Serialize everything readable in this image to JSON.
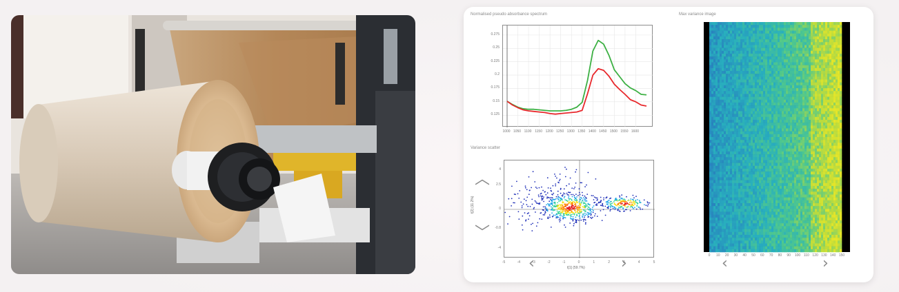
{
  "photo": {
    "subject": "paper-roll-slitter-machine"
  },
  "dashboard": {
    "spectrum_panel": {
      "title": "Normalised pseudo absorbance spectrum"
    },
    "scatter_panel": {
      "title": "Variance scatter",
      "xlabel": "t[1] (59.7%)",
      "ylabel": "t[2] (11.2%)"
    },
    "image_panel": {
      "title": "Max variance image"
    },
    "nav": {
      "prev_icon": "chevron-left-icon",
      "next_icon": "chevron-right-icon",
      "up_icon": "chevron-up-icon",
      "down_icon": "chevron-down-icon"
    }
  },
  "chart_data": [
    {
      "type": "line",
      "title": "Normalised pseudo absorbance spectrum",
      "x": [
        1000,
        1025,
        1050,
        1075,
        1100,
        1125,
        1150,
        1175,
        1200,
        1225,
        1250,
        1275,
        1300,
        1325,
        1350,
        1375,
        1400,
        1425,
        1450,
        1475,
        1500,
        1525,
        1550,
        1575,
        1600,
        1625,
        1650
      ],
      "xticks": [
        "1000",
        "1050",
        "1100",
        "1150",
        "1200",
        "1250",
        "1300",
        "1350",
        "1400",
        "1450",
        "1500",
        "1550",
        "1600"
      ],
      "yticks": [
        "0.125",
        "0.15",
        "0.175",
        "0.2",
        "0.225",
        "0.25",
        "0.275"
      ],
      "ylim": [
        0.115,
        0.28
      ],
      "series": [
        {
          "color": "#3cb043",
          "values": [
            0.151,
            0.145,
            0.14,
            0.137,
            0.136,
            0.136,
            0.135,
            0.134,
            0.133,
            0.133,
            0.133,
            0.134,
            0.136,
            0.14,
            0.149,
            0.19,
            0.245,
            0.265,
            0.258,
            0.237,
            0.21,
            0.197,
            0.184,
            0.176,
            0.171,
            0.164,
            0.163
          ]
        },
        {
          "color": "#e8272b",
          "values": [
            0.151,
            0.144,
            0.139,
            0.135,
            0.133,
            0.132,
            0.131,
            0.13,
            0.128,
            0.127,
            0.128,
            0.129,
            0.13,
            0.131,
            0.134,
            0.165,
            0.2,
            0.212,
            0.209,
            0.198,
            0.183,
            0.173,
            0.164,
            0.154,
            0.15,
            0.144,
            0.142
          ]
        }
      ],
      "grid": true
    },
    {
      "type": "scatter",
      "title": "Variance scatter",
      "xlabel": "t[1] (59.7%)",
      "ylabel": "t[2] (11.2%)",
      "xticks": [
        "-5",
        "-4",
        "-3",
        "-2",
        "-1",
        "0",
        "1",
        "2",
        "3",
        "4",
        "5"
      ],
      "yticks": [
        "4",
        "2.5",
        "0",
        "-0.8",
        "-4"
      ],
      "xlim": [
        -5,
        5
      ],
      "ylim": [
        -5,
        5
      ],
      "colormap": "jet-density",
      "grid": true
    },
    {
      "type": "heatmap",
      "title": "Max variance image",
      "xticks": [
        "0",
        "10",
        "20",
        "30",
        "40",
        "50",
        "60",
        "70",
        "80",
        "90",
        "100",
        "110",
        "120",
        "130",
        "140",
        "150"
      ],
      "colormap": "viridis-like",
      "grid": false
    }
  ]
}
